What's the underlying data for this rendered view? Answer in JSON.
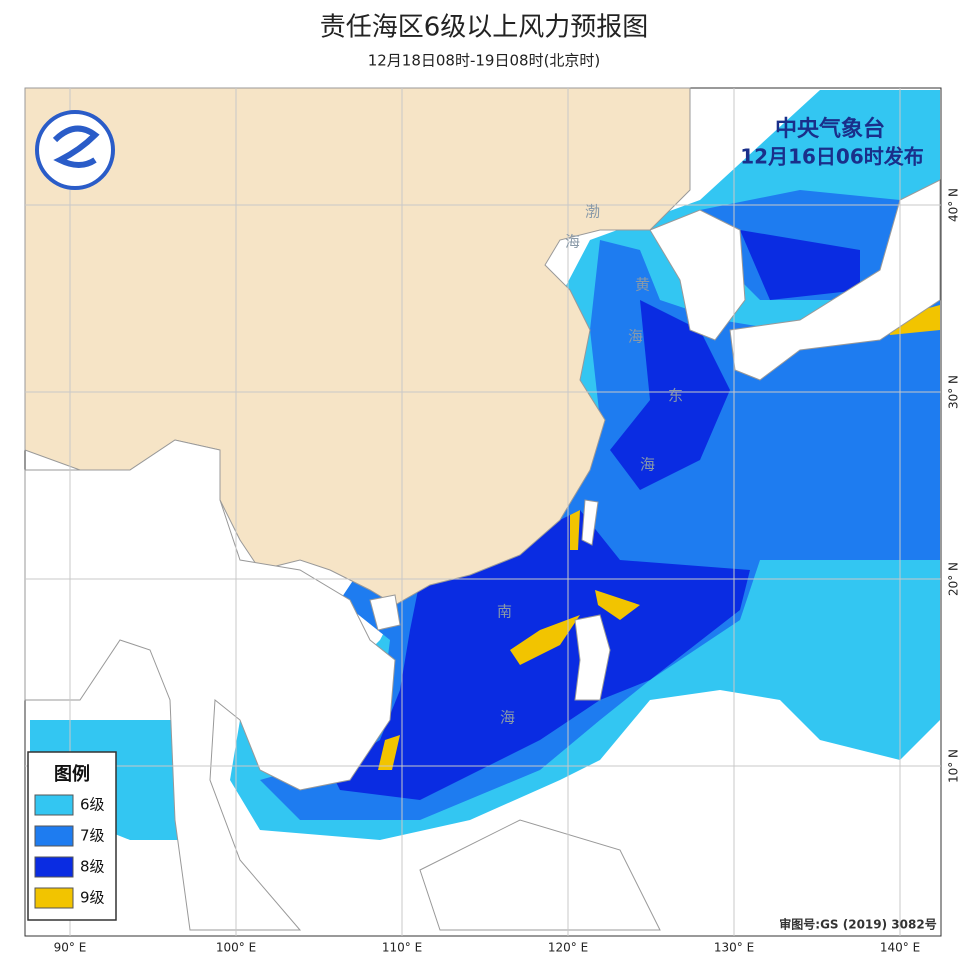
{
  "title": "责任海区6级以上风力预报图",
  "subtitle": "12月18日08时-19日08时(北京时)",
  "issuer": {
    "agency": "中央气象台",
    "issued": "12月16日06时发布"
  },
  "legend": {
    "title": "图例",
    "items": [
      {
        "label": "6级",
        "color": "#33c6f2"
      },
      {
        "label": "7级",
        "color": "#1e7cf0"
      },
      {
        "label": "8级",
        "color": "#0a2ce2"
      },
      {
        "label": "9级",
        "color": "#f2c400"
      }
    ]
  },
  "sea_labels": [
    "渤",
    "海",
    "黄",
    "海",
    "东",
    "海",
    "南",
    "海"
  ],
  "map": {
    "lon_ticks": [
      {
        "value": 90,
        "label": "90° E"
      },
      {
        "value": 100,
        "label": "100° E"
      },
      {
        "value": 110,
        "label": "110° E"
      },
      {
        "value": 120,
        "label": "120° E"
      },
      {
        "value": 130,
        "label": "130° E"
      },
      {
        "value": 140,
        "label": "140° E"
      }
    ],
    "lat_ticks": [
      {
        "value": 10,
        "label": "10° N"
      },
      {
        "value": 20,
        "label": "20° N"
      },
      {
        "value": 30,
        "label": "30° N"
      },
      {
        "value": 40,
        "label": "40° N"
      }
    ]
  },
  "approval": "审图号:GS (2019) 3082号"
}
